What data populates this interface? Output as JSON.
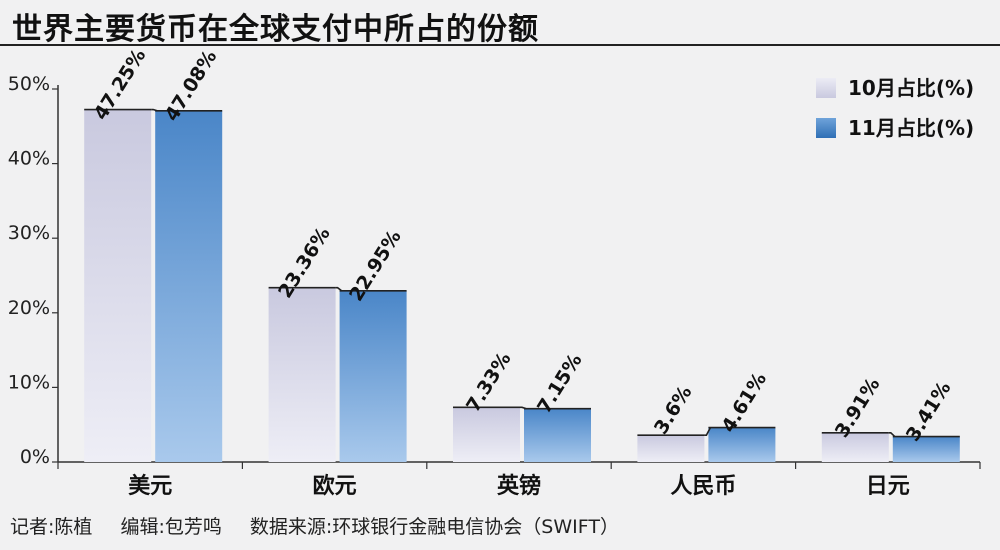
{
  "title": "世界主要货币在全球支付中所占的份额",
  "chart_data": {
    "type": "bar",
    "title": "世界主要货币在全球支付中所占的份额",
    "categories": [
      "美元",
      "欧元",
      "英镑",
      "人民币",
      "日元"
    ],
    "series": [
      {
        "name": "10月占比(%)",
        "values": [
          47.25,
          23.36,
          7.33,
          3.6,
          3.91
        ],
        "labels": [
          "47.25%",
          "23.36%",
          "7.33%",
          "3.6%",
          "3.91%"
        ]
      },
      {
        "name": "11月占比(%)",
        "values": [
          47.08,
          22.95,
          7.15,
          4.61,
          3.41
        ],
        "labels": [
          "47.08%",
          "22.95%",
          "7.15%",
          "4.61%",
          "3.41%"
        ]
      }
    ],
    "yticks": [
      "0%",
      "10%",
      "20%",
      "30%",
      "40%",
      "50%"
    ],
    "ylim": [
      0,
      50
    ],
    "legend_position": "top-right",
    "colors": [
      "#dcdcec",
      "#4f8dcc"
    ]
  },
  "footer": {
    "reporter": "记者:陈植",
    "editor": "编辑:包芳鸣",
    "source": "数据来源:环球银行金融电信协会（SWIFT）"
  }
}
